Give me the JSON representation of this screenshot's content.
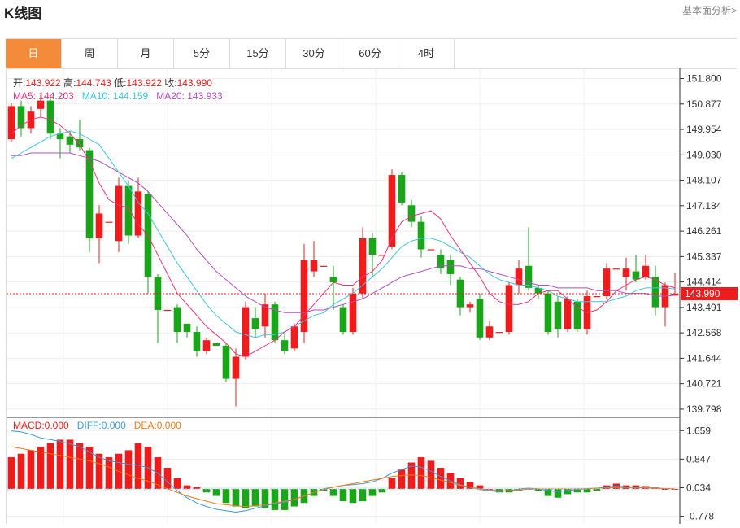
{
  "header": {
    "title": "K线图",
    "link_label": "基本面分析>"
  },
  "tabs": [
    "日",
    "周",
    "月",
    "5分",
    "15分",
    "30分",
    "60分",
    "4时"
  ],
  "active_tab": 0,
  "ohlc": {
    "open_label": "开:",
    "open": "143.922",
    "high_label": "高:",
    "high": "144.743",
    "low_label": "低:",
    "low": "143.922",
    "close_label": "收:",
    "close": "143.990"
  },
  "ma": {
    "ma5_label": "MA5:",
    "ma5": "144.203",
    "ma10_label": "MA10:",
    "ma10": "144.159",
    "ma20_label": "MA20:",
    "ma20": "143.933"
  },
  "macd_info": {
    "macd_label": "MACD:",
    "macd": "0.000",
    "diff_label": "DIFF:",
    "diff": "0.000",
    "dea_label": "DEA:",
    "dea": "0.000"
  },
  "current_price": "143.990",
  "colors": {
    "up": "#ee1c1c",
    "down": "#1aa51a",
    "ma5": "#e8347a",
    "ma10": "#3ec6e0",
    "ma20": "#b04ec0",
    "diff": "#3a9ad9",
    "dea": "#f07a12",
    "accent": "#f38b3a"
  },
  "chart_data": {
    "type": "candlestick",
    "y_ticks": [
      151.8,
      150.877,
      149.954,
      149.03,
      148.107,
      147.184,
      146.261,
      145.337,
      144.414,
      143.491,
      142.568,
      141.644,
      140.721,
      139.798
    ],
    "ylim": [
      139.5,
      152.2
    ],
    "candles": [
      [
        149.6,
        150.8,
        150.9,
        149.5
      ],
      [
        150.8,
        150.0,
        151.0,
        149.7
      ],
      [
        150.0,
        150.6,
        150.8,
        149.8
      ],
      [
        150.7,
        151.0,
        151.2,
        150.4
      ],
      [
        151.0,
        149.8,
        151.1,
        149.6
      ],
      [
        149.8,
        149.6,
        150.0,
        148.9
      ],
      [
        149.7,
        149.4,
        149.9,
        149.1
      ],
      [
        149.6,
        149.3,
        150.3,
        149.2
      ],
      [
        149.2,
        146.0,
        149.3,
        145.5
      ],
      [
        146.0,
        146.9,
        147.2,
        145.1
      ],
      [
        146.6,
        146.6,
        146.6,
        146.6
      ],
      [
        145.9,
        147.9,
        148.2,
        145.5
      ],
      [
        147.9,
        146.1,
        148.1,
        145.8
      ],
      [
        146.1,
        147.7,
        148.2,
        146.0
      ],
      [
        147.6,
        144.6,
        147.7,
        144.0
      ],
      [
        144.6,
        143.4,
        144.7,
        142.2
      ],
      [
        143.4,
        143.4,
        143.4,
        143.4
      ],
      [
        143.5,
        142.6,
        143.6,
        142.2
      ],
      [
        142.9,
        142.6,
        142.9,
        142.4
      ],
      [
        142.6,
        141.9,
        142.8,
        141.7
      ],
      [
        141.9,
        142.3,
        142.4,
        141.8
      ],
      [
        142.2,
        142.1,
        142.2,
        142.1
      ],
      [
        142.1,
        140.9,
        142.2,
        140.8
      ],
      [
        140.9,
        141.7,
        142.0,
        139.9
      ],
      [
        141.7,
        143.5,
        143.7,
        141.6
      ],
      [
        143.1,
        142.7,
        143.5,
        142.4
      ],
      [
        142.8,
        143.6,
        144.0,
        142.4
      ],
      [
        143.6,
        142.3,
        143.7,
        142.2
      ],
      [
        142.3,
        141.9,
        142.5,
        141.8
      ],
      [
        142.0,
        142.8,
        142.9,
        141.9
      ],
      [
        142.6,
        145.2,
        145.8,
        142.2
      ],
      [
        144.8,
        145.2,
        145.9,
        144.6
      ],
      [
        145.0,
        145.0,
        145.0,
        145.0
      ],
      [
        144.6,
        144.4,
        145.0,
        143.4
      ],
      [
        143.5,
        142.6,
        143.6,
        142.5
      ],
      [
        142.6,
        144.0,
        144.2,
        142.5
      ],
      [
        144.0,
        146.0,
        146.4,
        143.8
      ],
      [
        146.0,
        145.4,
        146.2,
        144.6
      ],
      [
        145.4,
        145.4,
        145.4,
        145.4
      ],
      [
        145.7,
        148.3,
        148.5,
        145.6
      ],
      [
        148.3,
        147.3,
        148.4,
        147.2
      ],
      [
        147.2,
        146.6,
        147.4,
        146.4
      ],
      [
        146.6,
        145.6,
        146.8,
        145.3
      ],
      [
        145.6,
        145.6,
        145.6,
        145.6
      ],
      [
        145.4,
        144.9,
        145.6,
        144.7
      ],
      [
        145.2,
        144.7,
        145.4,
        144.3
      ],
      [
        144.5,
        143.5,
        144.6,
        143.2
      ],
      [
        143.5,
        143.6,
        143.7,
        143.3
      ],
      [
        143.8,
        142.4,
        144.0,
        142.3
      ],
      [
        142.4,
        142.8,
        143.0,
        142.3
      ],
      [
        142.6,
        142.6,
        142.6,
        142.6
      ],
      [
        142.6,
        144.3,
        144.4,
        142.5
      ],
      [
        144.3,
        144.9,
        145.2,
        144.0
      ],
      [
        145.0,
        144.2,
        146.4,
        144.1
      ],
      [
        144.2,
        144.0,
        144.3,
        143.8
      ],
      [
        144.0,
        142.6,
        144.1,
        142.5
      ],
      [
        143.7,
        142.7,
        143.9,
        142.4
      ],
      [
        142.7,
        143.8,
        143.9,
        142.6
      ],
      [
        143.7,
        142.7,
        143.8,
        142.6
      ],
      [
        142.7,
        143.9,
        144.1,
        142.5
      ],
      [
        143.9,
        143.9,
        143.9,
        143.9
      ],
      [
        143.9,
        144.9,
        145.1,
        143.8
      ],
      [
        144.9,
        144.9,
        144.9,
        144.9
      ],
      [
        144.6,
        144.9,
        145.3,
        144.1
      ],
      [
        144.8,
        144.5,
        145.4,
        144.4
      ],
      [
        144.6,
        145.0,
        145.4,
        144.5
      ],
      [
        144.6,
        143.5,
        145.0,
        143.2
      ],
      [
        143.5,
        144.3,
        144.4,
        142.8
      ],
      [
        143.922,
        143.99,
        144.743,
        143.922
      ]
    ],
    "ma5": [
      149.8,
      150.1,
      150.3,
      150.4,
      150.3,
      150.1,
      149.8,
      149.4,
      148.8,
      148.0,
      147.4,
      147.2,
      147.1,
      146.5,
      146.1,
      145.4,
      144.7,
      144.0,
      143.6,
      143.2,
      142.8,
      142.5,
      142.2,
      141.8,
      141.7,
      141.9,
      142.1,
      142.3,
      142.6,
      142.8,
      143.2,
      143.6,
      144.0,
      144.4,
      144.3,
      144.3,
      144.6,
      144.8,
      145.2,
      146.0,
      146.6,
      146.8,
      146.9,
      147.0,
      146.7,
      146.1,
      145.6,
      145.1,
      144.6,
      144.0,
      143.7,
      143.6,
      143.6,
      143.7,
      144.0,
      144.1,
      144.1,
      143.8,
      143.5,
      143.3,
      143.4,
      143.7,
      144.1,
      144.3,
      144.5,
      144.6,
      144.5,
      144.3,
      144.2
    ],
    "ma10": [
      148.9,
      149.1,
      149.3,
      149.5,
      149.7,
      149.8,
      149.9,
      149.8,
      149.6,
      149.4,
      148.9,
      148.4,
      147.9,
      147.3,
      146.9,
      146.3,
      145.7,
      145.1,
      144.6,
      144.1,
      143.6,
      143.2,
      142.9,
      142.6,
      142.5,
      142.4,
      142.5,
      142.5,
      142.6,
      142.8,
      143.0,
      143.2,
      143.3,
      143.6,
      143.8,
      144.0,
      144.3,
      144.6,
      144.9,
      145.3,
      145.7,
      145.9,
      146.0,
      146.0,
      145.9,
      145.7,
      145.5,
      145.3,
      145.0,
      144.7,
      144.5,
      144.4,
      144.3,
      144.3,
      144.2,
      144.1,
      143.9,
      143.8,
      143.7,
      143.7,
      143.7,
      143.7,
      143.8,
      143.9,
      144.1,
      144.2,
      144.2,
      144.2,
      144.159
    ],
    "ma20": [
      149.0,
      149.0,
      149.1,
      149.1,
      149.1,
      149.1,
      149.1,
      149.0,
      148.9,
      148.8,
      148.6,
      148.4,
      148.2,
      148.0,
      147.7,
      147.3,
      146.9,
      146.5,
      146.1,
      145.6,
      145.2,
      144.8,
      144.5,
      144.2,
      143.9,
      143.7,
      143.5,
      143.4,
      143.3,
      143.3,
      143.3,
      143.4,
      143.4,
      143.5,
      143.6,
      143.7,
      143.8,
      144.0,
      144.2,
      144.4,
      144.6,
      144.7,
      144.8,
      144.9,
      145.0,
      145.0,
      145.0,
      144.9,
      144.9,
      144.8,
      144.7,
      144.6,
      144.5,
      144.4,
      144.3,
      144.3,
      144.2,
      144.2,
      144.2,
      144.2,
      144.1,
      144.1,
      144.1,
      144.0,
      144.0,
      144.0,
      143.9,
      143.9,
      143.933
    ],
    "macd_ticks": [
      1.659,
      0.847,
      0.034,
      -0.778
    ],
    "macd_lim": [
      -0.95,
      1.85
    ],
    "macd": [
      0.9,
      1.0,
      1.1,
      1.2,
      1.3,
      1.4,
      1.4,
      1.3,
      1.2,
      1.0,
      0.9,
      1.0,
      1.1,
      1.3,
      1.2,
      0.9,
      0.6,
      0.3,
      0.1,
      0.05,
      -0.1,
      -0.2,
      -0.4,
      -0.5,
      -0.55,
      -0.5,
      -0.55,
      -0.6,
      -0.6,
      -0.5,
      -0.4,
      -0.2,
      -0.05,
      -0.2,
      -0.35,
      -0.4,
      -0.35,
      -0.2,
      -0.1,
      0.3,
      0.55,
      0.75,
      0.9,
      0.8,
      0.6,
      0.45,
      0.3,
      0.2,
      0.1,
      0.0,
      -0.1,
      -0.1,
      -0.05,
      0.0,
      -0.05,
      -0.2,
      -0.25,
      -0.15,
      -0.1,
      -0.1,
      -0.05,
      0.1,
      0.15,
      0.1,
      0.1,
      0.08,
      0.04,
      0.0,
      0.0
    ],
    "diff": [
      1.65,
      1.62,
      1.55,
      1.45,
      1.4,
      1.35,
      1.28,
      1.2,
      1.05,
      0.9,
      0.8,
      0.75,
      0.7,
      0.68,
      0.6,
      0.45,
      0.2,
      -0.05,
      -0.25,
      -0.4,
      -0.5,
      -0.58,
      -0.62,
      -0.66,
      -0.62,
      -0.55,
      -0.48,
      -0.42,
      -0.38,
      -0.3,
      -0.2,
      -0.1,
      0.0,
      0.05,
      0.1,
      0.12,
      0.15,
      0.2,
      0.3,
      0.45,
      0.55,
      0.65,
      0.62,
      0.5,
      0.35,
      0.22,
      0.12,
      0.05,
      -0.02,
      -0.05,
      -0.08,
      -0.05,
      0.0,
      0.02,
      0.0,
      -0.05,
      -0.08,
      -0.05,
      -0.02,
      0.0,
      0.02,
      0.06,
      0.08,
      0.06,
      0.05,
      0.04,
      0.02,
      0.01,
      0.0
    ],
    "dea": [
      1.2,
      1.15,
      1.1,
      1.05,
      1.0,
      0.95,
      0.9,
      0.85,
      0.8,
      0.72,
      0.62,
      0.5,
      0.4,
      0.3,
      0.22,
      0.12,
      0.0,
      -0.1,
      -0.2,
      -0.28,
      -0.35,
      -0.42,
      -0.45,
      -0.48,
      -0.5,
      -0.48,
      -0.45,
      -0.4,
      -0.35,
      -0.3,
      -0.2,
      -0.1,
      -0.02,
      0.05,
      0.1,
      0.15,
      0.2,
      0.25,
      0.3,
      0.35,
      0.38,
      0.4,
      0.38,
      0.32,
      0.25,
      0.18,
      0.1,
      0.05,
      0.0,
      -0.03,
      -0.05,
      -0.05,
      -0.03,
      -0.01,
      0.0,
      0.0,
      0.0,
      0.0,
      0.0,
      0.01,
      0.02,
      0.03,
      0.04,
      0.04,
      0.03,
      0.03,
      0.02,
      0.01,
      0.0
    ]
  }
}
